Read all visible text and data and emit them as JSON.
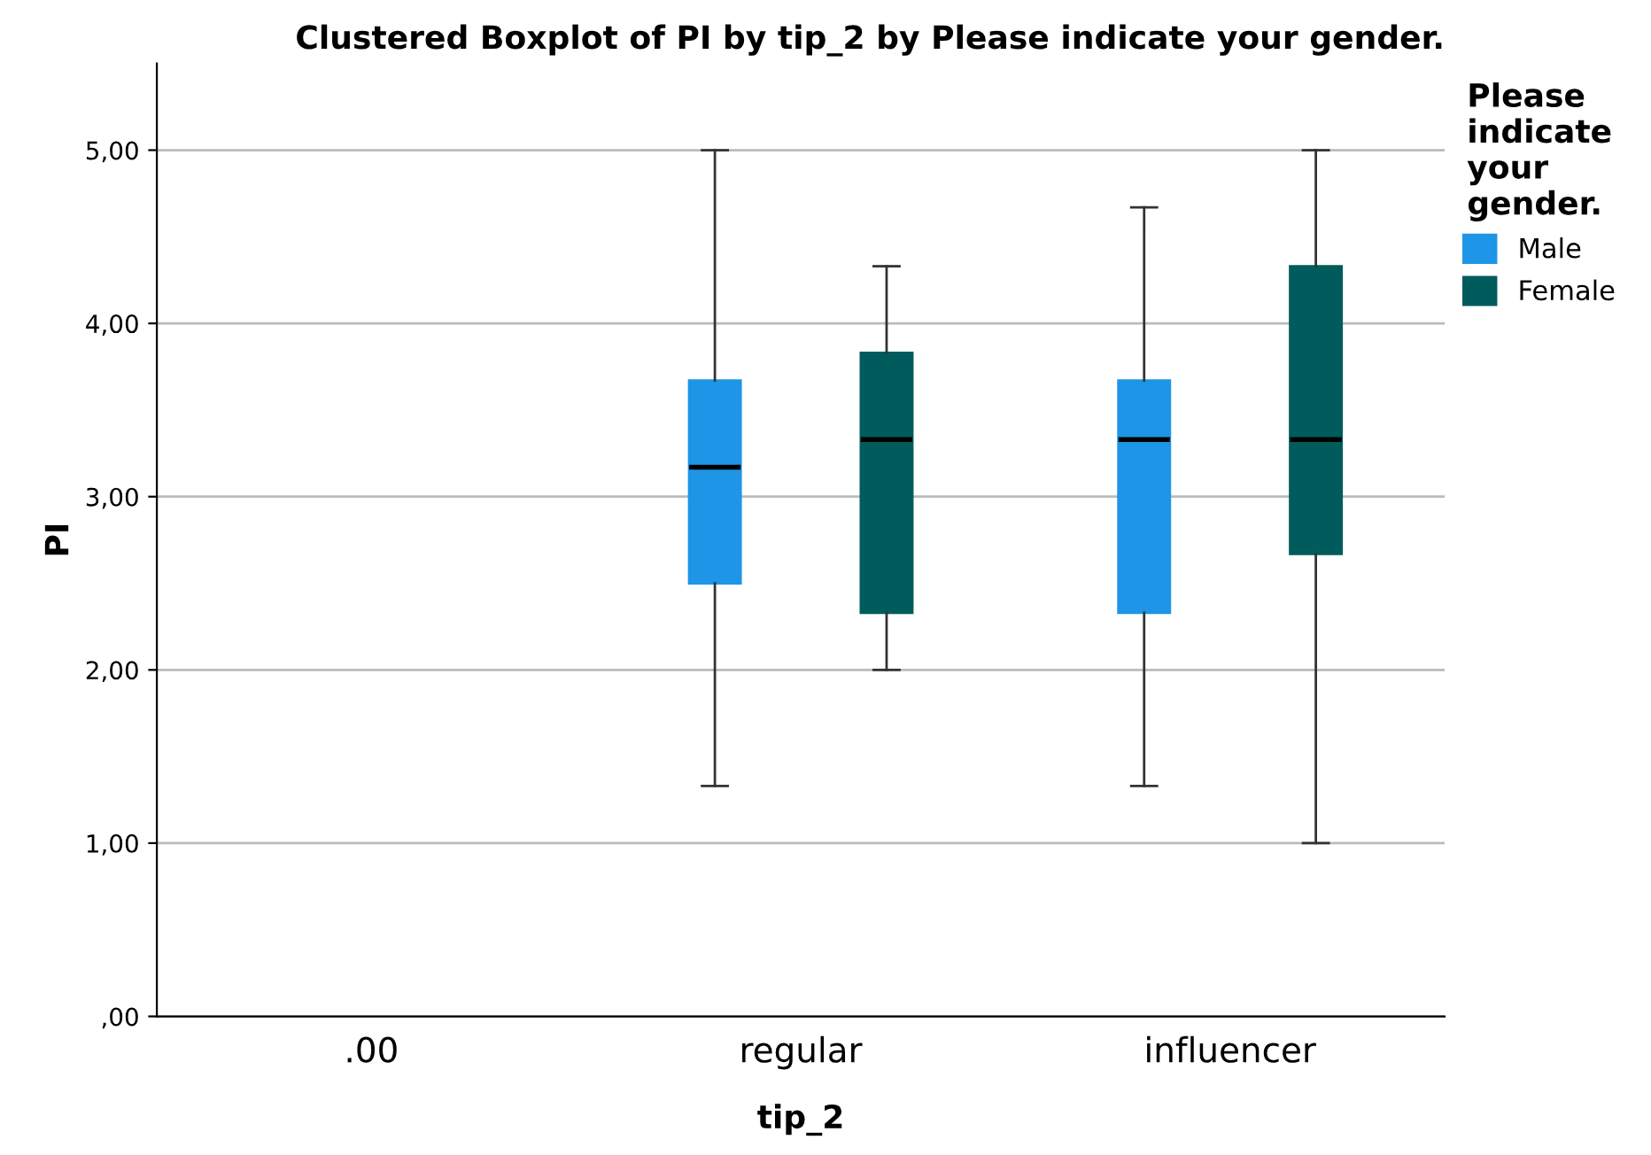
{
  "chart_data": {
    "type": "box",
    "title": "Clustered Boxplot of PI by tip_2 by Please indicate your gender.",
    "xlabel": "tip_2",
    "ylabel": "PI",
    "legend_title": "Please indicate your gender.",
    "categories": [
      ".00",
      "regular",
      "influencer"
    ],
    "series": [
      {
        "name": "Male",
        "color": "#1e95e6",
        "boxes": [
          null,
          {
            "low": 1.33,
            "q1": 2.5,
            "median": 3.17,
            "q3": 3.67,
            "high": 5.0
          },
          {
            "low": 1.33,
            "q1": 2.33,
            "median": 3.33,
            "q3": 3.67,
            "high": 4.67
          }
        ]
      },
      {
        "name": "Female",
        "color": "#005c5c",
        "boxes": [
          null,
          {
            "low": 2.0,
            "q1": 2.33,
            "median": 3.33,
            "q3": 3.83,
            "high": 4.33
          },
          {
            "low": 1.0,
            "q1": 2.67,
            "median": 3.33,
            "q3": 4.33,
            "high": 5.0
          }
        ]
      }
    ],
    "ylim": [
      0,
      5.5
    ],
    "yticks": [
      {
        "value": 0,
        "label": ",00"
      },
      {
        "value": 1,
        "label": "1,00"
      },
      {
        "value": 2,
        "label": "2,00"
      },
      {
        "value": 3,
        "label": "3,00"
      },
      {
        "value": 4,
        "label": "4,00"
      },
      {
        "value": 5,
        "label": "5,00"
      }
    ],
    "grid": "y",
    "legend": "top right"
  }
}
